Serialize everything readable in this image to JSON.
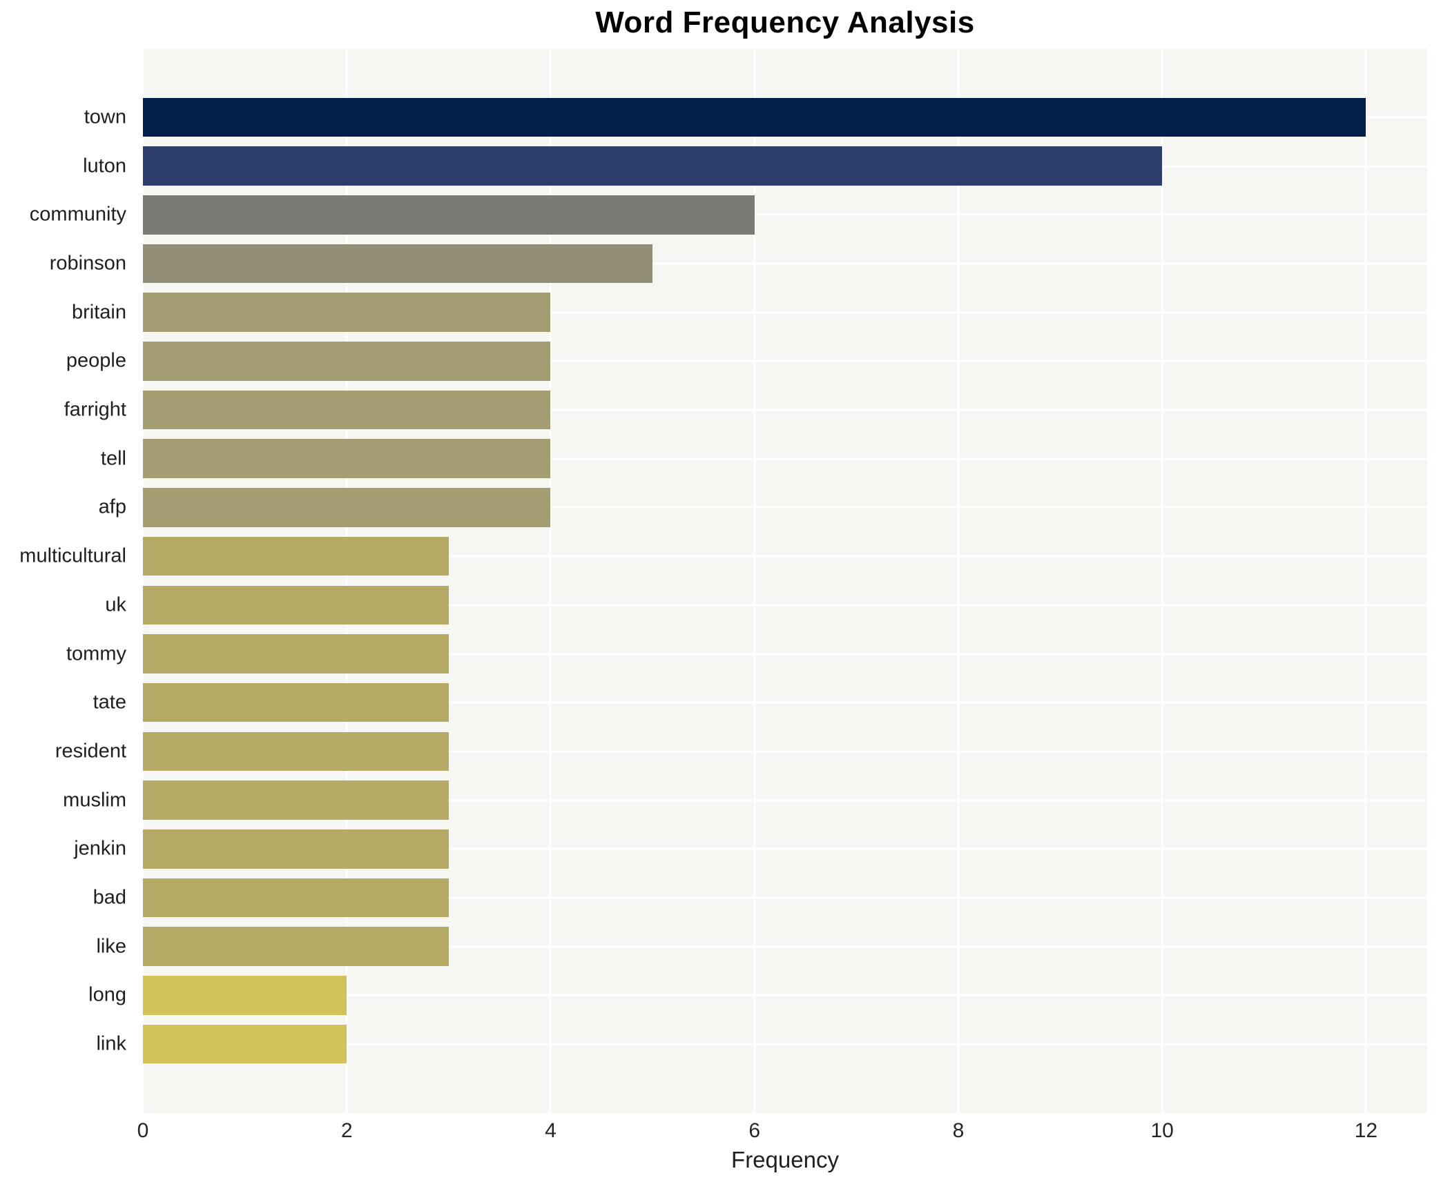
{
  "chart_data": {
    "type": "bar",
    "orientation": "horizontal",
    "title": "Word Frequency Analysis",
    "xlabel": "Frequency",
    "ylabel": "",
    "categories": [
      "town",
      "luton",
      "community",
      "robinson",
      "britain",
      "people",
      "farright",
      "tell",
      "afp",
      "multicultural",
      "uk",
      "tommy",
      "tate",
      "resident",
      "muslim",
      "jenkin",
      "bad",
      "like",
      "long",
      "link"
    ],
    "values": [
      12,
      10,
      6,
      5,
      4,
      4,
      4,
      4,
      4,
      3,
      3,
      3,
      3,
      3,
      3,
      3,
      3,
      3,
      2,
      2
    ],
    "bar_colors": [
      "#02204c",
      "#2d3e6c",
      "#7b7b75",
      "#938e78",
      "#a59d72",
      "#a59d72",
      "#a59d72",
      "#a59d72",
      "#a59d72",
      "#b5aa66",
      "#b5aa66",
      "#b5aa66",
      "#b5aa66",
      "#b5aa66",
      "#b5aa66",
      "#b5aa66",
      "#b5aa66",
      "#b5aa66",
      "#d3c15a",
      "#d3c15a"
    ],
    "xticks": [
      0,
      2,
      4,
      6,
      8,
      10,
      12
    ],
    "xlim": [
      0,
      12.6
    ],
    "grid": true,
    "legend_position": "none",
    "plot_background": "#f6f6f3",
    "grid_color": "#ffffff",
    "title_color": "#000000",
    "tick_label_color": "#262626"
  }
}
